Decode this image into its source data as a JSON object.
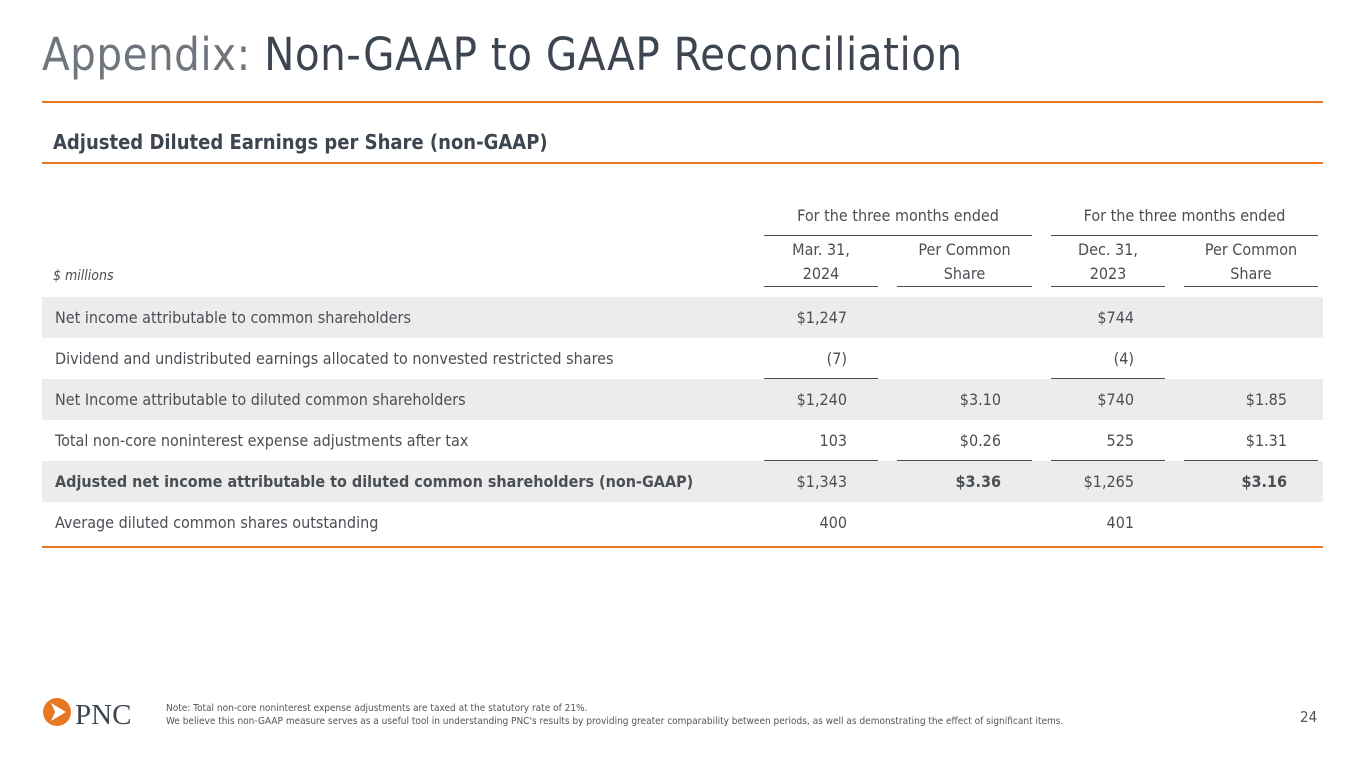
{
  "title": {
    "prefix": "Appendix:",
    "main": " Non-GAAP to GAAP Reconciliation"
  },
  "subtitle": "Adjusted Diluted Earnings per Share (non-GAAP)",
  "table": {
    "units": "$ millions",
    "group_headers": [
      "For the three months ended",
      "For the three months ended"
    ],
    "columns": [
      [
        "Mar. 31,",
        "2024"
      ],
      [
        "Per Common",
        "Share"
      ],
      [
        "Dec. 31,",
        "2023"
      ],
      [
        "Per Common",
        "Share"
      ]
    ],
    "rows": [
      {
        "label": "Net income attributable to common shareholders",
        "values": [
          "$1,247",
          "",
          "$744",
          ""
        ]
      },
      {
        "label": "Dividend and undistributed earnings allocated to nonvested restricted shares",
        "values": [
          "(7)",
          "",
          "(4)",
          ""
        ]
      },
      {
        "label": "Net Income attributable to diluted common shareholders",
        "values": [
          "$1,240",
          "$3.10",
          "$740",
          "$1.85"
        ]
      },
      {
        "label": "Total non-core noninterest expense adjustments after tax",
        "values": [
          "103",
          "$0.26",
          "525",
          "$1.31"
        ]
      },
      {
        "label": "Adjusted net income attributable to diluted common shareholders (non-GAAP)",
        "values": [
          "$1,343",
          "$3.36",
          "$1,265",
          "$3.16"
        ]
      },
      {
        "label": "Average diluted common shares outstanding",
        "values": [
          "400",
          "",
          "401",
          ""
        ]
      }
    ]
  },
  "footer": {
    "logo": "PNC",
    "note_lines": [
      "Note: Total non-core noninterest expense adjustments are taxed at the statutory rate of 21%.",
      "We believe this non-GAAP measure serves as a useful tool in understanding PNC's results by providing greater comparability between periods, as well as demonstrating the effect of significant items."
    ],
    "page": "24"
  },
  "colors": {
    "accent": "#e87722",
    "shade": "#ececec"
  }
}
